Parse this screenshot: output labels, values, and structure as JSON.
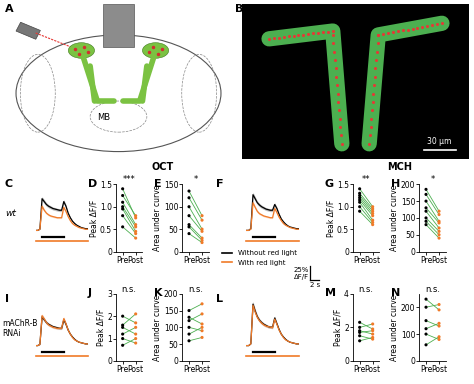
{
  "figure": {
    "panel_A": {
      "panel": "A",
      "structure_label": "MB"
    },
    "panel_B": {
      "panel": "B",
      "scale_bar_label": "30 μm"
    },
    "row_labels": [
      "wt",
      "mAChR-B\nRNAi"
    ],
    "odor_labels": [
      "OCT",
      "MCH"
    ],
    "trace_scale_bar": {
      "y": 0.25,
      "y_label": "25%",
      "y_unit": "ΔF/F",
      "x": 2,
      "x_label": "2 s"
    },
    "legend": "upper left"
  },
  "chart_data": [
    {
      "panel": "C",
      "type": "line",
      "tick_labels": false,
      "xlim": [
        0,
        12
      ],
      "ylim": [
        -0.2,
        0.8
      ],
      "stimulus": [
        1.5,
        6.5
      ],
      "light": [
        0,
        12
      ],
      "x": [
        0,
        0.5,
        1,
        1.5,
        2,
        2.5,
        3,
        3.5,
        4,
        4.5,
        5,
        5.5,
        6,
        6.5,
        7,
        7.5,
        8,
        8.5,
        9,
        9.5,
        10,
        10.5,
        11,
        11.5,
        12
      ],
      "series": [
        {
          "name": "Without red light",
          "color": "#000000",
          "values": [
            0,
            0,
            0.02,
            0.55,
            0.5,
            0.45,
            0.42,
            0.4,
            0.38,
            0.37,
            0.36,
            0.35,
            0.35,
            0.5,
            0.42,
            0.3,
            0.22,
            0.16,
            0.12,
            0.09,
            0.07,
            0.05,
            0.04,
            0.03,
            0.03
          ]
        },
        {
          "name": "With red light",
          "color": "#f07a28",
          "values": [
            0,
            0,
            0.02,
            0.42,
            0.35,
            0.3,
            0.27,
            0.25,
            0.24,
            0.23,
            0.22,
            0.22,
            0.22,
            0.4,
            0.33,
            0.24,
            0.17,
            0.12,
            0.09,
            0.07,
            0.05,
            0.04,
            0.03,
            0.02,
            0.02
          ]
        }
      ]
    },
    {
      "panel": "D",
      "type": "paired",
      "categories": [
        "Pre",
        "Post"
      ],
      "colors": [
        "#000000",
        "#f07a28"
      ],
      "color": "#4caf50",
      "ylabel": "Peak ΔF/F",
      "ylim": [
        0,
        1.5
      ],
      "yticks": [
        0,
        0.5,
        1.0,
        1.5
      ],
      "significance": "***",
      "values": [
        [
          1.4,
          0.75
        ],
        [
          1.25,
          0.8
        ],
        [
          1.1,
          0.6
        ],
        [
          1.0,
          0.55
        ],
        [
          0.95,
          0.45
        ],
        [
          0.8,
          0.4
        ],
        [
          0.55,
          0.3
        ]
      ]
    },
    {
      "panel": "E",
      "type": "paired",
      "categories": [
        "Pre",
        "Post"
      ],
      "colors": [
        "#000000",
        "#f07a28"
      ],
      "color": "#4caf50",
      "ylabel": "Area under curve",
      "ylim": [
        0,
        150
      ],
      "yticks": [
        0,
        50,
        100,
        150
      ],
      "significance": "*",
      "values": [
        [
          135,
          80
        ],
        [
          120,
          70
        ],
        [
          100,
          50
        ],
        [
          80,
          45
        ],
        [
          60,
          30
        ],
        [
          55,
          25
        ],
        [
          40,
          20
        ]
      ]
    },
    {
      "panel": "F",
      "type": "line",
      "tick_labels": false,
      "xlim": [
        0,
        12
      ],
      "ylim": [
        -0.2,
        0.8
      ],
      "stimulus": [
        1.5,
        6.5
      ],
      "light": [
        0,
        12
      ],
      "x": [
        0,
        0.5,
        1,
        1.5,
        2,
        2.5,
        3,
        3.5,
        4,
        4.5,
        5,
        5.5,
        6,
        6.5,
        7,
        7.5,
        8,
        8.5,
        9,
        9.5,
        10,
        10.5,
        11,
        11.5,
        12
      ],
      "series": [
        {
          "name": "Without red light",
          "color": "#000000",
          "values": [
            0,
            0,
            0.03,
            0.62,
            0.55,
            0.48,
            0.44,
            0.41,
            0.39,
            0.37,
            0.36,
            0.35,
            0.35,
            0.45,
            0.38,
            0.28,
            0.2,
            0.15,
            0.11,
            0.08,
            0.06,
            0.05,
            0.04,
            0.03,
            0.03
          ]
        },
        {
          "name": "With red light",
          "color": "#f07a28",
          "values": [
            0,
            0,
            0.02,
            0.48,
            0.4,
            0.33,
            0.29,
            0.27,
            0.25,
            0.24,
            0.23,
            0.22,
            0.22,
            0.38,
            0.31,
            0.23,
            0.17,
            0.12,
            0.09,
            0.07,
            0.05,
            0.04,
            0.03,
            0.02,
            0.02
          ]
        }
      ]
    },
    {
      "panel": "G",
      "type": "paired",
      "categories": [
        "Pre",
        "Post"
      ],
      "colors": [
        "#000000",
        "#f07a28"
      ],
      "color": "#4caf50",
      "ylabel": "Peak ΔF/F",
      "ylim": [
        0,
        1.5
      ],
      "yticks": [
        0,
        0.5,
        1.0,
        1.5
      ],
      "significance": "**",
      "values": [
        [
          1.4,
          1.0
        ],
        [
          1.3,
          0.95
        ],
        [
          1.25,
          0.9
        ],
        [
          1.2,
          0.85
        ],
        [
          1.15,
          0.8
        ],
        [
          1.1,
          0.7
        ],
        [
          1.0,
          0.65
        ],
        [
          0.9,
          0.6
        ]
      ]
    },
    {
      "panel": "H",
      "type": "paired",
      "categories": [
        "Pre",
        "Post"
      ],
      "colors": [
        "#000000",
        "#f07a28"
      ],
      "color": "#4caf50",
      "ylabel": "Area under curve",
      "ylim": [
        0,
        200
      ],
      "yticks": [
        0,
        50,
        100,
        150,
        200
      ],
      "significance": "*",
      "values": [
        [
          185,
          120
        ],
        [
          170,
          110
        ],
        [
          150,
          90
        ],
        [
          130,
          85
        ],
        [
          120,
          70
        ],
        [
          100,
          60
        ],
        [
          90,
          50
        ],
        [
          80,
          40
        ]
      ]
    },
    {
      "panel": "I",
      "type": "line",
      "tick_labels": false,
      "xlim": [
        0,
        12
      ],
      "ylim": [
        -0.2,
        0.8
      ],
      "stimulus": [
        1.5,
        6.5
      ],
      "light": [
        0,
        12
      ],
      "x": [
        0,
        0.5,
        1,
        1.5,
        2,
        2.5,
        3,
        3.5,
        4,
        4.5,
        5,
        5.5,
        6,
        6.5,
        7,
        7.5,
        8,
        8.5,
        9,
        9.5,
        10,
        10.5,
        11,
        11.5,
        12
      ],
      "series": [
        {
          "name": "Without red light",
          "color": "#000000",
          "values": [
            0,
            0,
            0.02,
            0.5,
            0.45,
            0.4,
            0.37,
            0.35,
            0.33,
            0.32,
            0.31,
            0.3,
            0.3,
            0.45,
            0.37,
            0.27,
            0.2,
            0.15,
            0.11,
            0.08,
            0.06,
            0.05,
            0.04,
            0.03,
            0.03
          ]
        },
        {
          "name": "With red light",
          "color": "#f07a28",
          "values": [
            0,
            0,
            0.02,
            0.52,
            0.46,
            0.4,
            0.36,
            0.34,
            0.32,
            0.31,
            0.3,
            0.3,
            0.3,
            0.47,
            0.38,
            0.27,
            0.2,
            0.14,
            0.1,
            0.08,
            0.06,
            0.05,
            0.04,
            0.03,
            0.03
          ]
        }
      ]
    },
    {
      "panel": "J",
      "type": "paired",
      "categories": [
        "Pre",
        "Post"
      ],
      "colors": [
        "#000000",
        "#f07a28"
      ],
      "color": "#4caf50",
      "ylabel": "Peak ΔF/F",
      "ylim": [
        0,
        3
      ],
      "yticks": [
        0,
        1,
        2,
        3
      ],
      "significance": "n.s.",
      "values": [
        [
          2.0,
          1.7
        ],
        [
          1.6,
          2.1
        ],
        [
          1.5,
          1.2
        ],
        [
          1.2,
          1.5
        ],
        [
          1.0,
          0.8
        ],
        [
          0.7,
          1.0
        ]
      ]
    },
    {
      "panel": "K",
      "type": "paired",
      "categories": [
        "Pre",
        "Post"
      ],
      "colors": [
        "#000000",
        "#f07a28"
      ],
      "color": "#4caf50",
      "ylabel": "Area under curve",
      "ylim": [
        0,
        200
      ],
      "yticks": [
        0,
        50,
        100,
        150,
        200
      ],
      "significance": "n.s.",
      "values": [
        [
          150,
          170
        ],
        [
          130,
          110
        ],
        [
          120,
          140
        ],
        [
          100,
          90
        ],
        [
          80,
          100
        ],
        [
          60,
          70
        ]
      ]
    },
    {
      "panel": "L",
      "type": "line",
      "tick_labels": false,
      "xlim": [
        0,
        12
      ],
      "ylim": [
        -0.2,
        0.8
      ],
      "stimulus": [
        1.5,
        6.5
      ],
      "light": [
        0,
        12
      ],
      "x": [
        0,
        0.5,
        1,
        1.5,
        2,
        2.5,
        3,
        3.5,
        4,
        4.5,
        5,
        5.5,
        6,
        6.5,
        7,
        7.5,
        8,
        8.5,
        9,
        9.5,
        10,
        10.5,
        11,
        11.5,
        12
      ],
      "series": [
        {
          "name": "Without red light",
          "color": "#000000",
          "values": [
            0,
            0,
            0.03,
            0.72,
            0.6,
            0.5,
            0.44,
            0.4,
            0.37,
            0.35,
            0.33,
            0.32,
            0.32,
            0.48,
            0.38,
            0.28,
            0.2,
            0.15,
            0.11,
            0.08,
            0.06,
            0.05,
            0.04,
            0.03,
            0.03
          ]
        },
        {
          "name": "With red light",
          "color": "#f07a28",
          "values": [
            0,
            0,
            0.03,
            0.7,
            0.58,
            0.49,
            0.43,
            0.39,
            0.36,
            0.34,
            0.33,
            0.32,
            0.31,
            0.46,
            0.37,
            0.27,
            0.2,
            0.14,
            0.1,
            0.08,
            0.06,
            0.05,
            0.04,
            0.03,
            0.03
          ]
        }
      ]
    },
    {
      "panel": "M",
      "type": "paired",
      "categories": [
        "Pre",
        "Post"
      ],
      "colors": [
        "#000000",
        "#f07a28"
      ],
      "color": "#4caf50",
      "ylabel": "Peak ΔF/F",
      "ylim": [
        0,
        4
      ],
      "yticks": [
        0,
        2,
        4
      ],
      "significance": "n.s.",
      "values": [
        [
          2.3,
          1.9
        ],
        [
          2.0,
          2.2
        ],
        [
          1.8,
          1.6
        ],
        [
          1.7,
          1.8
        ],
        [
          1.5,
          1.3
        ],
        [
          1.2,
          1.4
        ]
      ]
    },
    {
      "panel": "N",
      "type": "paired",
      "categories": [
        "Pre",
        "Post"
      ],
      "colors": [
        "#000000",
        "#f07a28"
      ],
      "color": "#4caf50",
      "ylabel": "Area under curve",
      "ylim": [
        0,
        250
      ],
      "yticks": [
        0,
        100,
        200
      ],
      "significance": "n.s.",
      "values": [
        [
          230,
          190
        ],
        [
          200,
          210
        ],
        [
          150,
          130
        ],
        [
          120,
          140
        ],
        [
          100,
          80
        ],
        [
          60,
          90
        ]
      ]
    }
  ]
}
